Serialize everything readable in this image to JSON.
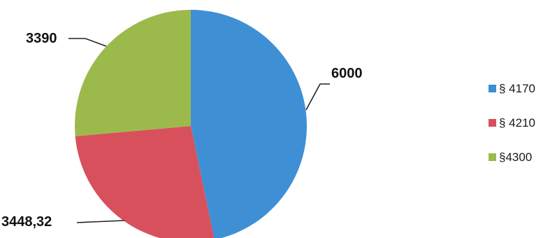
{
  "chart_data": {
    "type": "pie",
    "categories": [
      "§ 4170",
      "§ 4210",
      "§4300"
    ],
    "values": [
      6000,
      3448.32,
      3390
    ],
    "data_labels": [
      "6000",
      "3448,32",
      "3390"
    ],
    "colors": [
      "#3f8fd4",
      "#d9505d",
      "#9cba4c"
    ],
    "legend": {
      "position": "right",
      "entries": [
        "§ 4170",
        "§ 4210",
        "§4300"
      ]
    },
    "title": ""
  }
}
